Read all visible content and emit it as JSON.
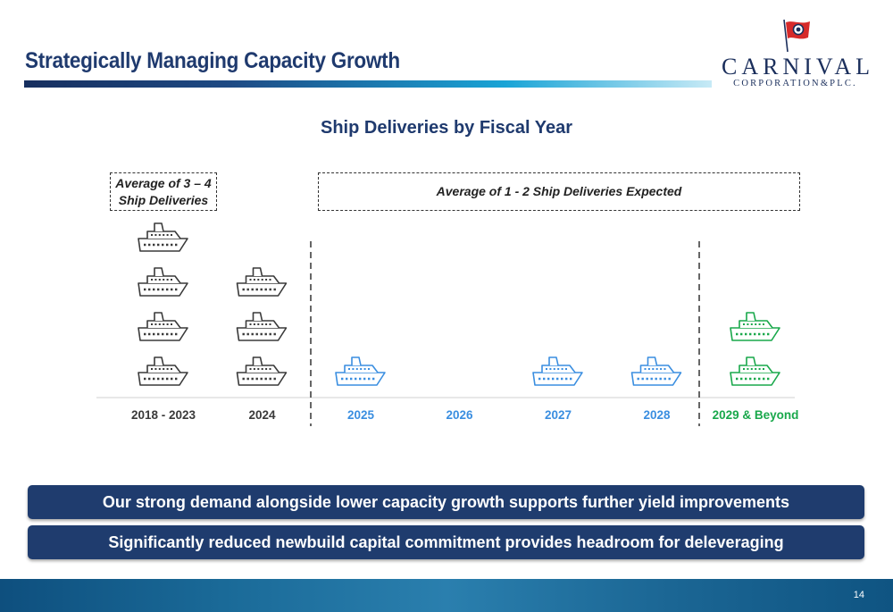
{
  "slide": {
    "title": "Strategically Managing Capacity Growth",
    "page_number": "14"
  },
  "logo": {
    "word": "CARNIVAL",
    "sub": "CORPORATION&PLC."
  },
  "colors": {
    "title": "#1f3a6e",
    "historic": "#3a3a3a",
    "expected": "#3a8ee0",
    "beyond": "#19a84b",
    "banner": "#1f3c6e"
  },
  "callouts": {
    "historic": "Average of 3 – 4 Ship Deliveries",
    "expected": "Average of 1 - 2 Ship Deliveries Expected"
  },
  "banners": [
    "Our strong demand alongside lower capacity growth supports further yield improvements",
    "Significantly reduced newbuild capital commitment provides headroom for deleveraging"
  ],
  "chart_data": {
    "type": "bar",
    "title": "Ship Deliveries by Fiscal Year",
    "categories": [
      "2018 - 2023",
      "2024",
      "2025",
      "2026",
      "2027",
      "2028",
      "2029 & Beyond"
    ],
    "values": [
      4,
      3,
      1,
      0,
      1,
      1,
      2
    ],
    "category_colors": [
      "#3a3a3a",
      "#3a3a3a",
      "#3a8ee0",
      "#3a8ee0",
      "#3a8ee0",
      "#3a8ee0",
      "#19a84b"
    ],
    "mark_icon": "cruise-ship-icon",
    "xlabel": "",
    "ylabel": "",
    "grid": false
  }
}
